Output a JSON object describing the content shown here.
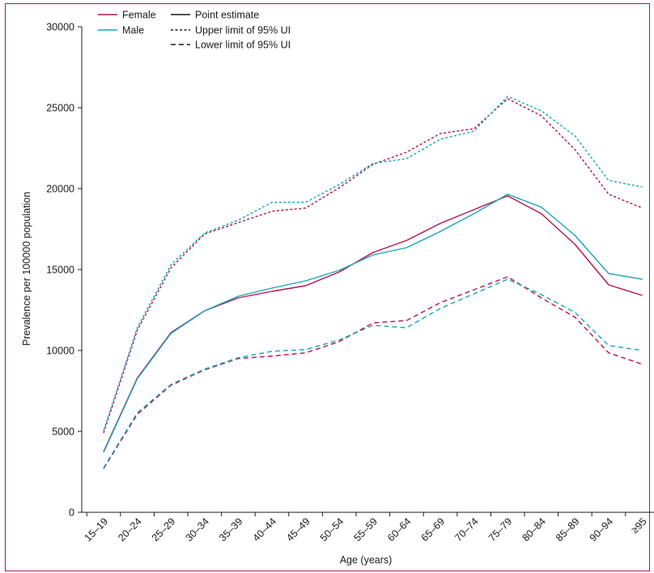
{
  "chart_data": {
    "type": "line",
    "xlabel": "Age (years)",
    "ylabel": "Prevalence per 100000 population",
    "ylim": [
      0,
      30000
    ],
    "yticks": [
      0,
      5000,
      10000,
      15000,
      20000,
      25000,
      30000
    ],
    "ytick_labels": [
      "0",
      "5000",
      "10000",
      "15000",
      "20000",
      "25000",
      "30000"
    ],
    "categories": [
      "15–19",
      "20–24",
      "25–29",
      "30–34",
      "35–39",
      "40–44",
      "45–49",
      "50–54",
      "55–59",
      "60–64",
      "65–69",
      "70–74",
      "75–79",
      "80–84",
      "85–89",
      "90–94",
      "≥95"
    ],
    "legend": {
      "position": "top-left",
      "entries": [
        {
          "label": "Female",
          "style": "solid",
          "color": "#b5124f"
        },
        {
          "label": "Male",
          "style": "solid",
          "color": "#1aa5b8"
        },
        {
          "label": "Point estimate",
          "style": "solid",
          "color": "#1a1a1a"
        },
        {
          "label": "Upper limit of 95% UI",
          "style": "dotted",
          "color": "#1a1a1a"
        },
        {
          "label": "Lower limit of 95% UI",
          "style": "dashed",
          "color": "#1a1a1a"
        }
      ]
    },
    "series": [
      {
        "name": "Female",
        "estimate": "point",
        "color": "#b5124f",
        "style": "solid",
        "values": [
          3750,
          8300,
          11100,
          12450,
          13250,
          13650,
          14000,
          14850,
          16050,
          16800,
          17850,
          18700,
          19550,
          18450,
          16550,
          14050,
          13400
        ]
      },
      {
        "name": "Female",
        "estimate": "upper",
        "color": "#b5124f",
        "style": "dotted",
        "values": [
          4900,
          11250,
          15100,
          17200,
          17900,
          18600,
          18800,
          20050,
          21500,
          22250,
          23400,
          23700,
          25550,
          24500,
          22400,
          19650,
          18800
        ]
      },
      {
        "name": "Female",
        "estimate": "lower",
        "color": "#b5124f",
        "style": "dashed",
        "values": [
          2700,
          6050,
          7850,
          8800,
          9500,
          9650,
          9850,
          10550,
          11700,
          11850,
          12950,
          13750,
          14550,
          13250,
          12050,
          9850,
          9150
        ]
      },
      {
        "name": "Male",
        "estimate": "point",
        "color": "#1aa5b8",
        "style": "solid",
        "values": [
          3700,
          8250,
          11050,
          12450,
          13350,
          13850,
          14300,
          14950,
          15900,
          16350,
          17350,
          18450,
          19650,
          18850,
          17100,
          14750,
          14400
        ]
      },
      {
        "name": "Male",
        "estimate": "upper",
        "color": "#1aa5b8",
        "style": "dotted",
        "values": [
          5050,
          11400,
          15300,
          17250,
          18050,
          19150,
          19150,
          20250,
          21550,
          21850,
          23050,
          23550,
          25700,
          24800,
          23250,
          20500,
          20100
        ]
      },
      {
        "name": "Male",
        "estimate": "lower",
        "color": "#1aa5b8",
        "style": "dashed",
        "values": [
          2750,
          6150,
          7900,
          8850,
          9550,
          9950,
          10050,
          10650,
          11550,
          11400,
          12600,
          13500,
          14400,
          13450,
          12350,
          10300,
          10000
        ]
      }
    ]
  }
}
